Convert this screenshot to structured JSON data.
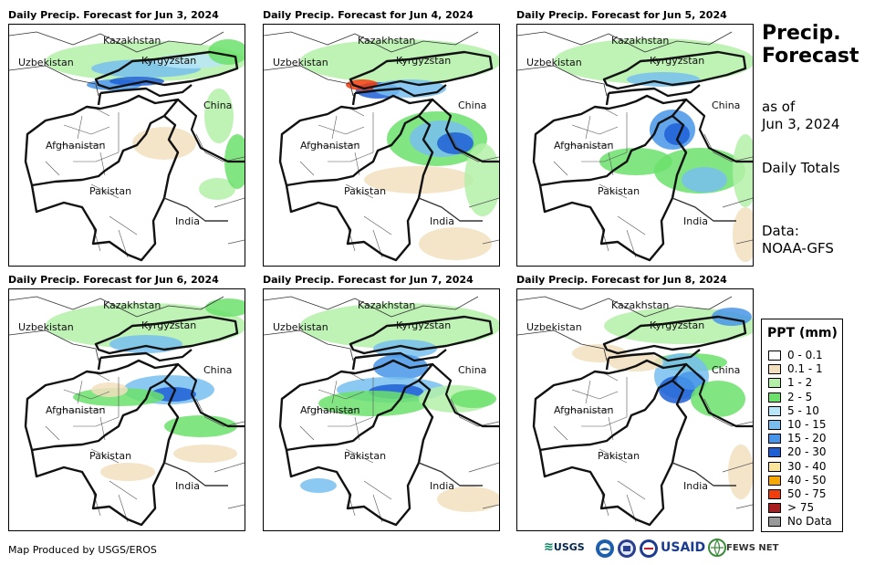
{
  "panels": [
    {
      "title": "Daily Precip. Forecast for Jun 3, 2024"
    },
    {
      "title": "Daily Precip. Forecast for Jun 4, 2024"
    },
    {
      "title": "Daily Precip. Forecast for Jun 5, 2024"
    },
    {
      "title": "Daily Precip. Forecast for Jun 6, 2024"
    },
    {
      "title": "Daily Precip. Forecast for Jun 7, 2024"
    },
    {
      "title": "Daily Precip. Forecast for Jun 8, 2024"
    }
  ],
  "map_labels": {
    "kazakhstan": "Kazakhstan",
    "uzbekistan": "Uzbekistan",
    "kyrgyzstan": "Kyrgyzstan",
    "china": "China",
    "afghanistan": "Afghanistan",
    "pakistan": "Pakistan",
    "india": "India"
  },
  "side": {
    "title": "Precip.\nForecast",
    "as_of": "as of\nJun 3, 2024",
    "totals": "Daily Totals",
    "data_source": "Data:\nNOAA-GFS"
  },
  "legend": {
    "title": "PPT (mm)",
    "items": [
      {
        "label": "0 - 0.1",
        "color": "#ffffff"
      },
      {
        "label": "0.1 - 1",
        "color": "#f2dfbe"
      },
      {
        "label": "1 - 2",
        "color": "#b4f0a8"
      },
      {
        "label": "2 - 5",
        "color": "#6be06b"
      },
      {
        "label": "5 - 10",
        "color": "#b8e6f8"
      },
      {
        "label": "10 - 15",
        "color": "#78bff0"
      },
      {
        "label": "15 - 20",
        "color": "#4695e8"
      },
      {
        "label": "20 - 30",
        "color": "#1f5fd6"
      },
      {
        "label": "30 - 40",
        "color": "#fbe59a"
      },
      {
        "label": "40 - 50",
        "color": "#f7a800"
      },
      {
        "label": "50 - 75",
        "color": "#f23d0c"
      },
      {
        "label": "> 75",
        "color": "#a81e1e"
      },
      {
        "label": "No Data",
        "color": "#999999"
      }
    ]
  },
  "footer": {
    "credit": "Map Produced by USGS/EROS",
    "logos": [
      "USGS",
      "USAID",
      "FEWS NET"
    ]
  }
}
